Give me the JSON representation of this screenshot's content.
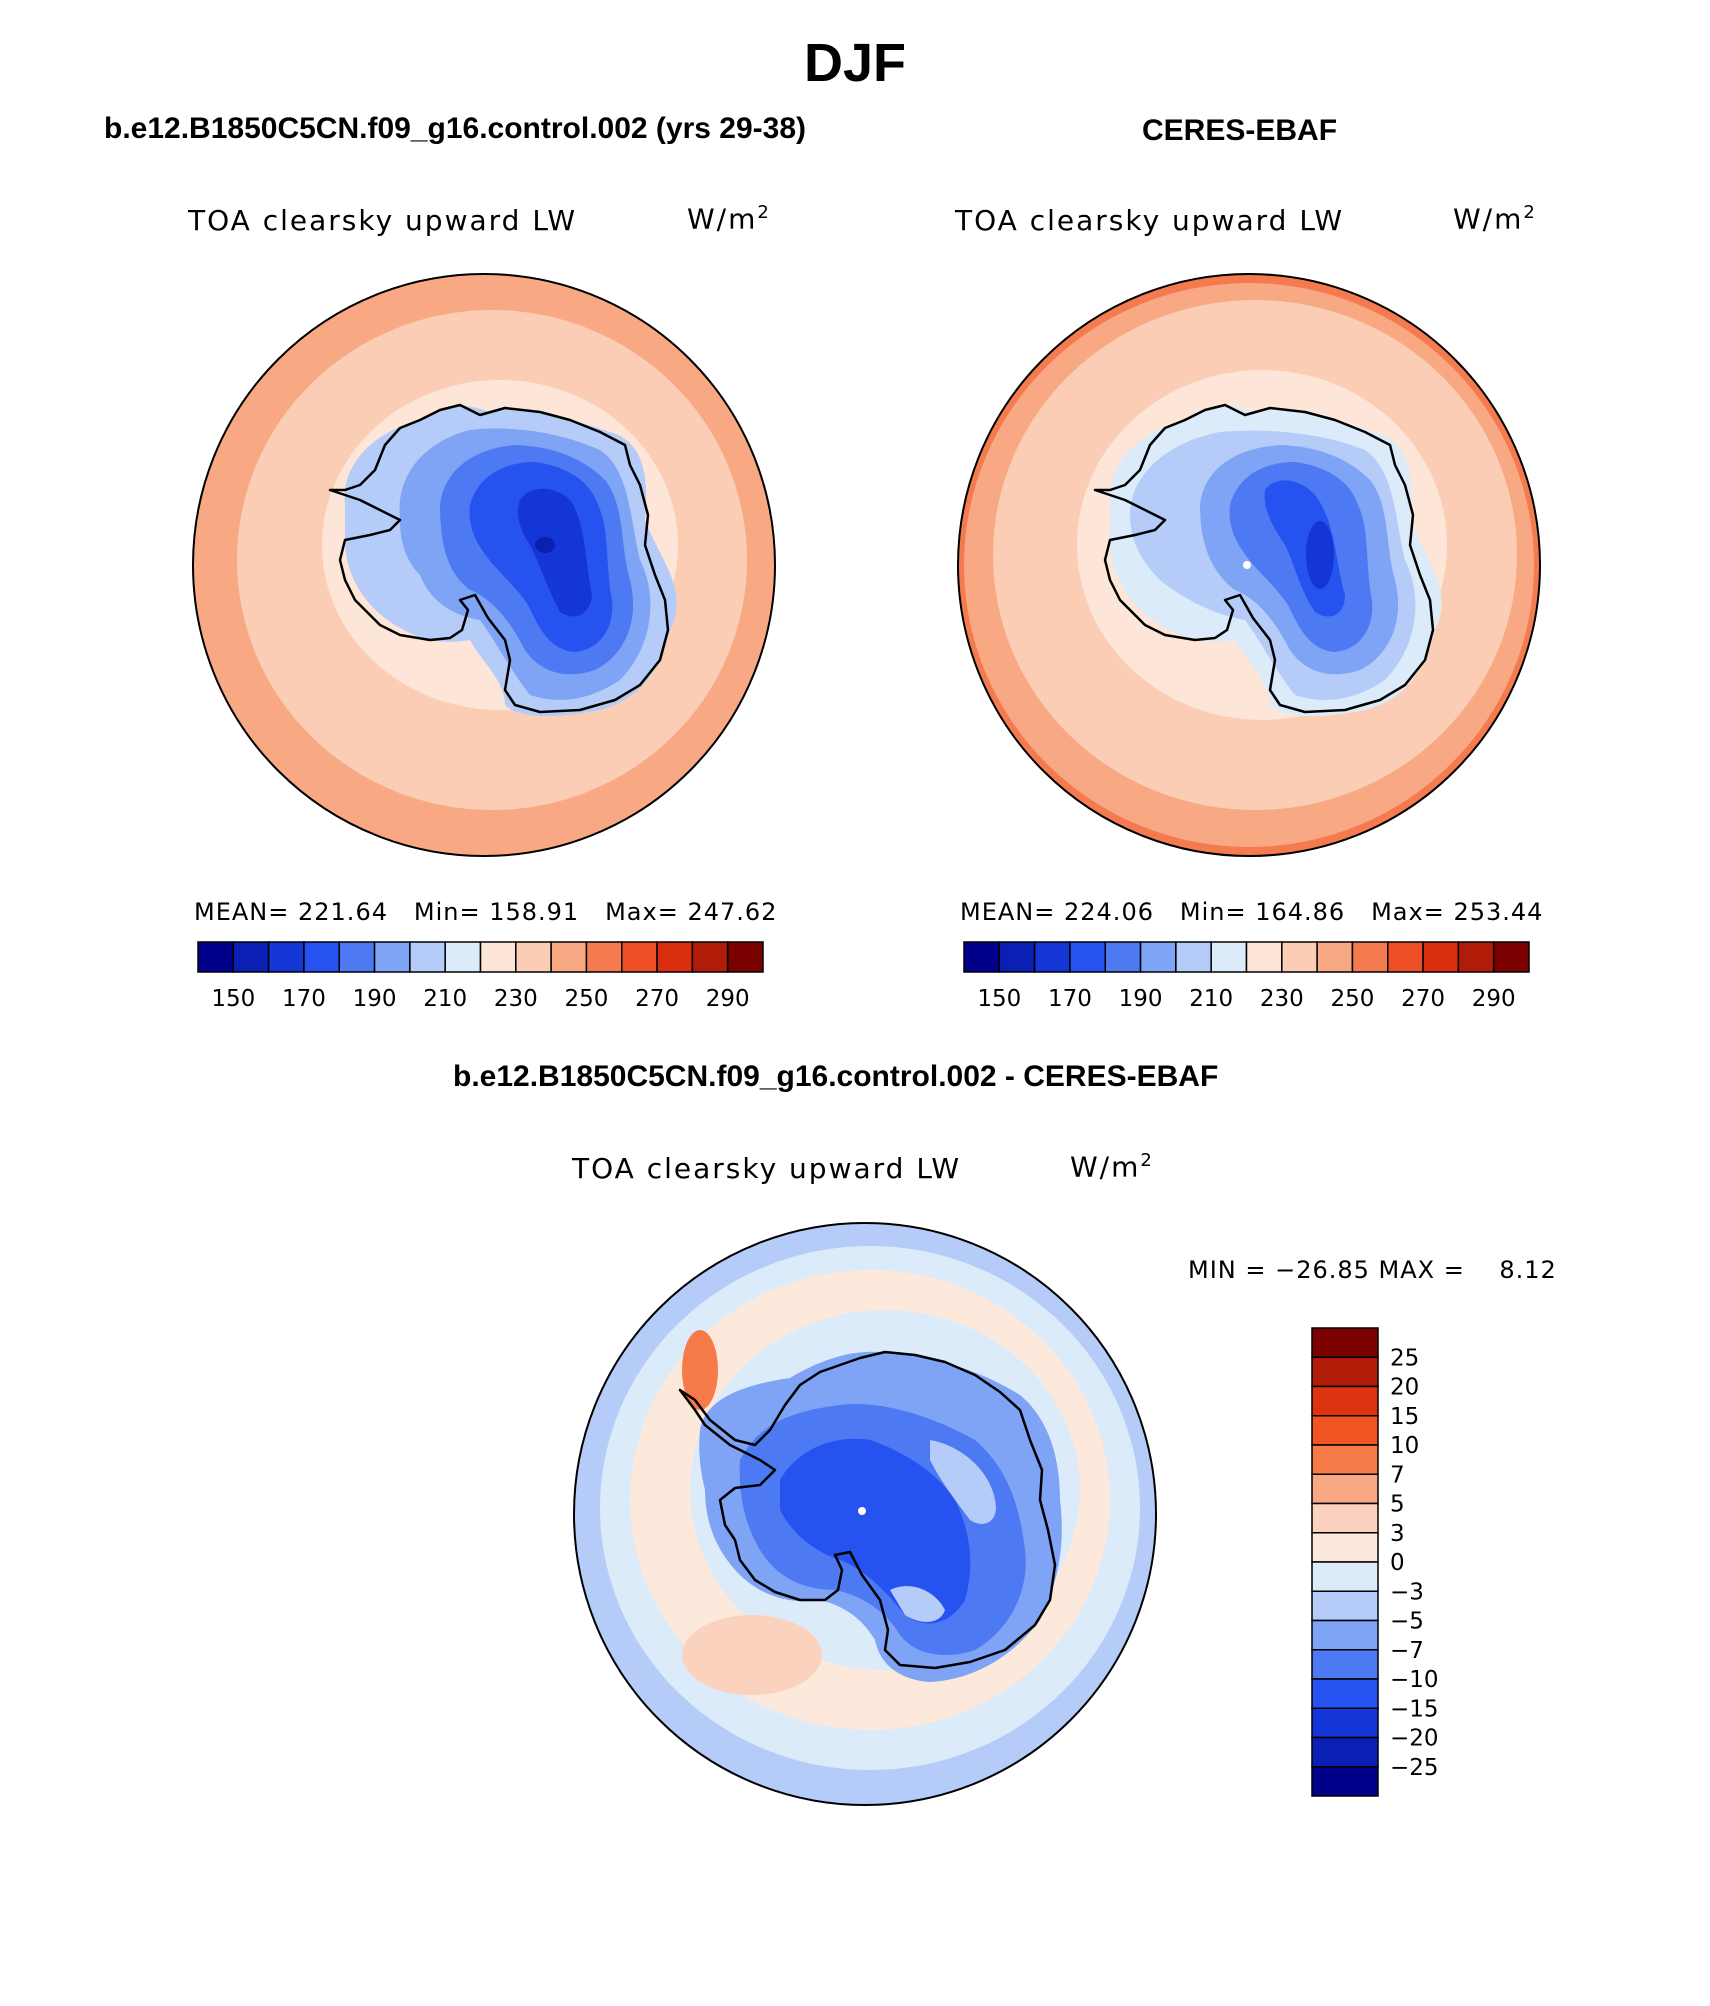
{
  "figure": {
    "title": "DJF",
    "panels": [
      {
        "title": "b.e12.B1850C5CN.f09_g16.control.002 (yrs 29-38)",
        "variable": "TOA clearsky upward LW",
        "unit_base": "W/m",
        "unit_exp": "2",
        "stats": {
          "mean_label": "MEAN=",
          "mean": "221.64",
          "min_label": "Min=",
          "min": "158.91",
          "max_label": "Max=",
          "max": "247.62"
        }
      },
      {
        "title": "CERES-EBAF",
        "variable": "TOA clearsky upward LW",
        "unit_base": "W/m",
        "unit_exp": "2",
        "stats": {
          "mean_label": "MEAN=",
          "mean": "224.06",
          "min_label": "Min=",
          "min": "164.86",
          "max_label": "Max=",
          "max": "253.44"
        }
      }
    ],
    "diff_panel": {
      "title": "b.e12.B1850C5CN.f09_g16.control.002 - CERES-EBAF",
      "variable": "TOA clearsky upward LW",
      "unit_base": "W/m",
      "unit_exp": "2",
      "minmax_text": "MIN = −26.85 MAX =    8.12"
    }
  },
  "colorbars": {
    "abs_colors": [
      "#00008b",
      "#0a1fb3",
      "#1536d6",
      "#2652f0",
      "#4d7af2",
      "#7fa3f5",
      "#b4ccf7",
      "#dcebfa",
      "#fde6d7",
      "#fbcdb4",
      "#f8a984",
      "#f47b4f",
      "#ee4f26",
      "#d92e10",
      "#b01c08",
      "#7b0000"
    ],
    "abs_ticks": [
      "150",
      "170",
      "190",
      "210",
      "230",
      "250",
      "270",
      "290"
    ],
    "diff_colors": [
      "#7b0000",
      "#b01c08",
      "#dd3310",
      "#f25522",
      "#f77b48",
      "#f8a882",
      "#fbd2bd",
      "#fde9db",
      "#dcebfa",
      "#b4ccf7",
      "#7fa3f5",
      "#4d7af2",
      "#2652f0",
      "#1536d6",
      "#0a1fb3",
      "#00008b"
    ],
    "diff_ticks": [
      "25",
      "20",
      "15",
      "10",
      "7",
      "5",
      "3",
      "0",
      "−3",
      "−5",
      "−7",
      "−10",
      "−15",
      "−20",
      "−25"
    ]
  },
  "chart_data": [
    {
      "type": "heatmap",
      "projection": "south-polar-stereographic",
      "title": "b.e12.B1850C5CN.f09_g16.control.002 (yrs 29-38)",
      "variable": "TOA clearsky upward LW",
      "units": "W/m2",
      "mean": 221.64,
      "min": 158.91,
      "max": 247.62,
      "contour_levels": [
        150,
        160,
        170,
        180,
        190,
        200,
        210,
        220,
        230,
        240,
        250,
        260,
        270,
        280,
        290
      ]
    },
    {
      "type": "heatmap",
      "projection": "south-polar-stereographic",
      "title": "CERES-EBAF",
      "variable": "TOA clearsky upward LW",
      "units": "W/m2",
      "mean": 224.06,
      "min": 164.86,
      "max": 253.44,
      "contour_levels": [
        150,
        160,
        170,
        180,
        190,
        200,
        210,
        220,
        230,
        240,
        250,
        260,
        270,
        280,
        290
      ]
    },
    {
      "type": "heatmap",
      "projection": "south-polar-stereographic",
      "title": "b.e12.B1850C5CN.f09_g16.control.002 - CERES-EBAF",
      "variable": "TOA clearsky upward LW",
      "units": "W/m2",
      "min": -26.85,
      "max": 8.12,
      "contour_levels": [
        -25,
        -20,
        -15,
        -10,
        -7,
        -5,
        -3,
        0,
        3,
        5,
        7,
        10,
        15,
        20,
        25
      ]
    }
  ]
}
